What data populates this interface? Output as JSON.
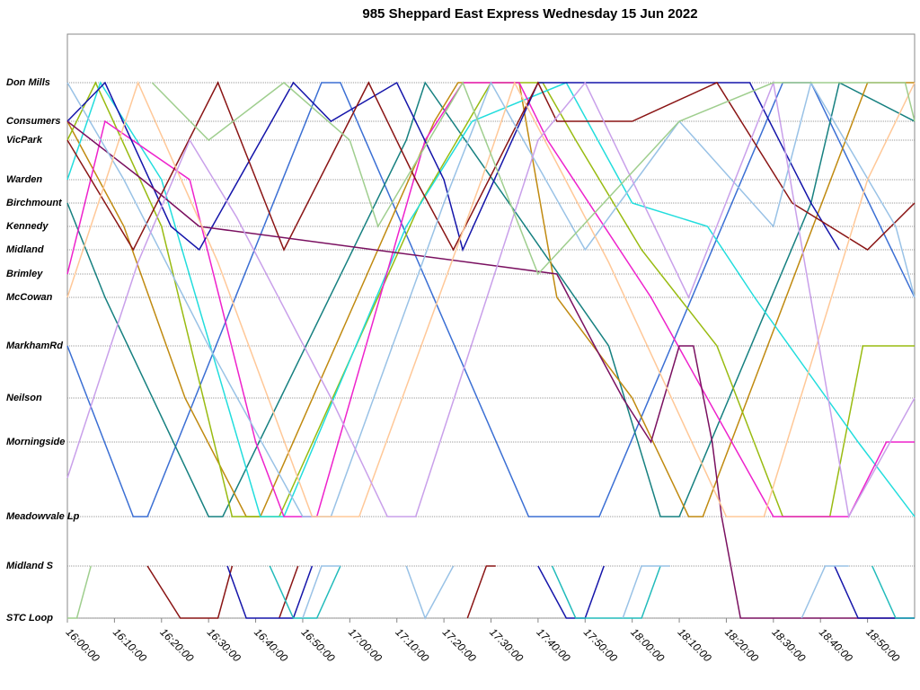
{
  "chart_data": {
    "type": "line",
    "title": "985 Sheppard East Express Wednesday 15 Jun 2022",
    "xlim": [
      960,
      1140
    ],
    "xticks": [
      {
        "value": 960,
        "label": "16:00:00"
      },
      {
        "value": 970,
        "label": "16:10:00"
      },
      {
        "value": 980,
        "label": "16:20:00"
      },
      {
        "value": 990,
        "label": "16:30:00"
      },
      {
        "value": 1000,
        "label": "16:40:00"
      },
      {
        "value": 1010,
        "label": "16:50:00"
      },
      {
        "value": 1020,
        "label": "17:00:00"
      },
      {
        "value": 1030,
        "label": "17:10:00"
      },
      {
        "value": 1040,
        "label": "17:20:00"
      },
      {
        "value": 1050,
        "label": "17:30:00"
      },
      {
        "value": 1060,
        "label": "17:40:00"
      },
      {
        "value": 1070,
        "label": "17:50:00"
      },
      {
        "value": 1080,
        "label": "18:00:00"
      },
      {
        "value": 1090,
        "label": "18:10:00"
      },
      {
        "value": 1100,
        "label": "18:20:00"
      },
      {
        "value": 1110,
        "label": "18:30:00"
      },
      {
        "value": 1120,
        "label": "18:40:00"
      },
      {
        "value": 1130,
        "label": "18:50:00"
      }
    ],
    "ylim": [
      -5.4,
      59.6
    ],
    "y_inverted": true,
    "yticks": [
      {
        "value": 0,
        "label": "Don Mills"
      },
      {
        "value": 4.3,
        "label": "Consumers"
      },
      {
        "value": 6.4,
        "label": "VicPark"
      },
      {
        "value": 10.8,
        "label": "Warden"
      },
      {
        "value": 13.4,
        "label": "Birchmount"
      },
      {
        "value": 16,
        "label": "Kennedy"
      },
      {
        "value": 18.6,
        "label": "Midland"
      },
      {
        "value": 21.3,
        "label": "Brimley"
      },
      {
        "value": 23.9,
        "label": "McCowan"
      },
      {
        "value": 29.3,
        "label": "MarkhamRd"
      },
      {
        "value": 35.1,
        "label": "Neilson"
      },
      {
        "value": 40,
        "label": "Morningside"
      },
      {
        "value": 48.3,
        "label": "Meadowvale Lp"
      },
      {
        "value": 53.8,
        "label": "Midland S"
      },
      {
        "value": 59.6,
        "label": "STC Loop"
      }
    ],
    "grid": true,
    "series": [
      {
        "color": "#3b6fd4",
        "x": [
          960,
          974,
          977,
          1014,
          1018,
          1058,
          1073,
          1112,
          1118,
          1140
        ],
        "values": [
          29.3,
          48.3,
          48.3,
          0,
          0,
          48.3,
          48.3,
          0,
          0,
          23.9
        ]
      },
      {
        "color": "#168080",
        "x": [
          960,
          968,
          990,
          993,
          1032,
          1036,
          1075,
          1086,
          1090,
          1118,
          1124,
          1140
        ],
        "values": [
          13.4,
          23.9,
          48.3,
          48.3,
          6.4,
          0,
          29.3,
          48.3,
          48.3,
          13.4,
          0,
          4.3
        ]
      },
      {
        "color": "#c08a10",
        "x": [
          960,
          972,
          985,
          998,
          1001,
          1038,
          1043,
          1056,
          1064,
          1080,
          1092,
          1095,
          1130,
          1134,
          1140
        ],
        "values": [
          4.3,
          16,
          35.1,
          48.3,
          48.3,
          4.3,
          0,
          0,
          23.9,
          35.1,
          48.3,
          48.3,
          0,
          0,
          0
        ]
      },
      {
        "color": "#99bb11",
        "x": [
          960,
          966,
          980,
          995,
          1005,
          1035,
          1050,
          1061,
          1068,
          1082,
          1098,
          1112,
          1122,
          1129,
          1140
        ],
        "values": [
          6.4,
          0,
          16,
          48.3,
          48.3,
          13.4,
          0,
          0,
          6.4,
          18.6,
          29.3,
          48.3,
          48.3,
          29.3,
          29.3
        ]
      },
      {
        "color": "#22dddd",
        "x": [
          960,
          967,
          980,
          1001,
          1006,
          1032,
          1046,
          1066,
          1080,
          1096,
          1106,
          1128,
          1140
        ],
        "values": [
          10.8,
          0,
          10.8,
          48.3,
          48.3,
          16,
          4.3,
          0,
          13.4,
          16,
          23.9,
          40,
          48.3
        ]
      },
      {
        "color": "#ee22cc",
        "x": [
          960,
          968,
          986,
          1000,
          1006,
          1013,
          1036,
          1044,
          1056,
          1062,
          1084,
          1110,
          1126,
          1134,
          1140
        ],
        "values": [
          21.3,
          4.3,
          10.8,
          40,
          48.3,
          48.3,
          6.4,
          0,
          0,
          6.4,
          23.9,
          48.3,
          48.3,
          40,
          40
        ]
      },
      {
        "color": "#1515aa",
        "x": [
          960,
          968,
          982,
          988,
          1008,
          1016,
          1030,
          1040,
          1044,
          1060,
          1078,
          1090,
          1105,
          1118,
          1124
        ],
        "values": [
          4.3,
          0,
          16,
          18.6,
          0,
          4.3,
          0,
          10.8,
          18.6,
          0,
          0,
          0,
          0,
          13.4,
          18.6
        ]
      },
      {
        "color": "#8a1515",
        "x": [
          960,
          974,
          992,
          1006,
          1024,
          1034,
          1042,
          1060,
          1064,
          1080,
          1098,
          1114,
          1130,
          1140
        ],
        "values": [
          6.4,
          18.6,
          0,
          18.6,
          0,
          10.8,
          18.6,
          0,
          4.3,
          4.3,
          0,
          13.4,
          18.6,
          13.4
        ]
      },
      {
        "color": "#7a1060",
        "x": [
          960,
          976,
          988,
          1064,
          1072,
          1078,
          1084,
          1090,
          1093,
          1097,
          1099,
          1103,
          1140
        ],
        "values": [
          4.3,
          10.8,
          16,
          21.3,
          29.3,
          35.1,
          40,
          29.3,
          29.3,
          40,
          48.3,
          59.6,
          59.6
        ]
      },
      {
        "color": "#99c2e6",
        "x": [
          960,
          972,
          990,
          1010,
          1016,
          1040,
          1050,
          1070,
          1090,
          1110,
          1118,
          1136,
          1140
        ],
        "values": [
          0,
          10.8,
          29.3,
          48.3,
          48.3,
          13.4,
          0,
          18.6,
          4.3,
          16,
          0,
          16,
          23.9
        ]
      },
      {
        "color": "#ffc898",
        "x": [
          960,
          975,
          992,
          1012,
          1022,
          1048,
          1055,
          1075,
          1100,
          1108,
          1130,
          1140
        ],
        "values": [
          23.9,
          0,
          20,
          48.3,
          48.3,
          10.8,
          0,
          20,
          48.3,
          48.3,
          10.8,
          0
        ]
      },
      {
        "color": "#c9a0ea",
        "x": [
          960,
          975,
          986,
          996,
          1016,
          1028,
          1034,
          1060,
          1070,
          1092,
          1110,
          1126,
          1140
        ],
        "values": [
          44,
          20,
          6.4,
          15,
          35.1,
          48.3,
          48.3,
          6.4,
          0,
          23.9,
          0,
          48.3,
          35.1
        ]
      },
      {
        "color": "#9fce8e",
        "x": [
          960,
          962,
          965,
          970,
          978,
          990,
          1006,
          1020,
          1026,
          1044,
          1060,
          1090,
          1110,
          1138,
          1140
        ],
        "values": [
          59.6,
          59.6,
          53.8,
          null,
          0,
          6.4,
          0,
          6.4,
          16,
          0,
          21.3,
          4.3,
          0,
          0,
          4.3
        ]
      },
      {
        "color": "#8a1515",
        "x": [
          977,
          984,
          992,
          995,
          1001,
          1005,
          1009,
          1040,
          1045,
          1049,
          1051
        ],
        "values": [
          53.8,
          59.6,
          59.6,
          53.8,
          null,
          59.6,
          53.8,
          null,
          59.6,
          53.8,
          53.8
        ]
      },
      {
        "color": "#1515aa",
        "x": [
          994,
          998,
          1004,
          1008,
          1012,
          null,
          1060,
          1066,
          1070,
          1074,
          null,
          1123,
          1128,
          1132,
          1140
        ],
        "values": [
          53.8,
          59.6,
          59.6,
          59.6,
          53.8,
          null,
          53.8,
          59.6,
          59.6,
          53.8,
          null,
          53.8,
          59.6,
          59.6,
          59.6
        ]
      },
      {
        "color": "#22bbbb",
        "x": [
          1003,
          1008,
          1013,
          1018,
          null,
          1063,
          1068,
          1082,
          1086,
          null,
          1131,
          1136,
          1140
        ],
        "values": [
          53.8,
          59.6,
          59.6,
          53.8,
          null,
          53.8,
          59.6,
          59.6,
          53.8,
          null,
          53.8,
          59.6,
          59.6
        ]
      },
      {
        "color": "#99c2e6",
        "x": [
          1010,
          1014,
          1018,
          null,
          1032,
          1036,
          1042,
          null,
          1078,
          1082,
          1088,
          null,
          1116,
          1121,
          1126
        ],
        "values": [
          59.6,
          53.8,
          53.8,
          null,
          53.8,
          59.6,
          53.8,
          null,
          59.6,
          53.8,
          53.8,
          null,
          59.6,
          53.8,
          53.8
        ]
      }
    ]
  }
}
